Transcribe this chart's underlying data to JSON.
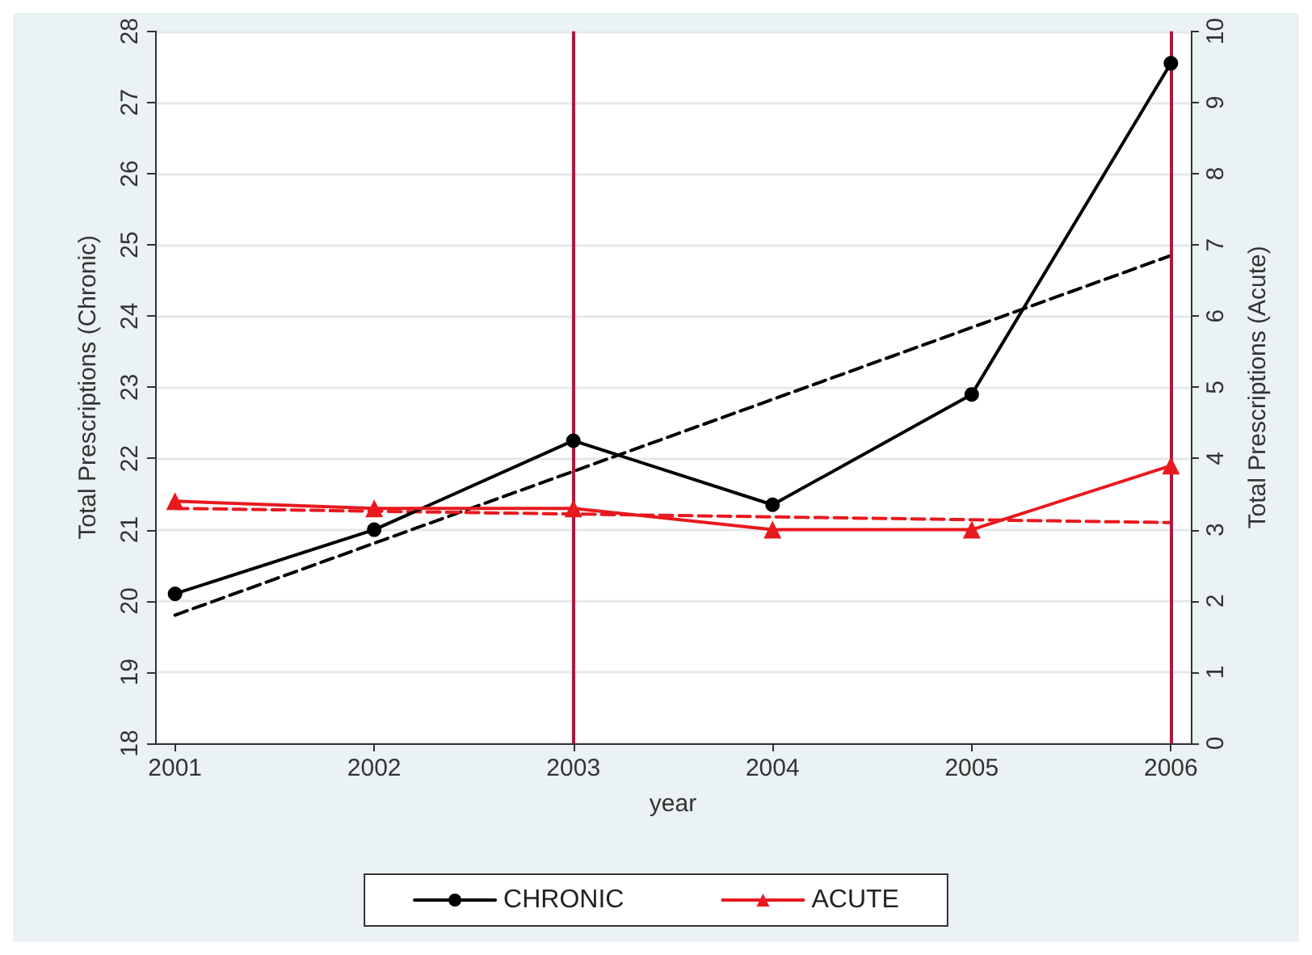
{
  "chart_data": {
    "type": "line",
    "xlabel": "year",
    "ylabel": "Total Prescriptions (Chronic)",
    "y2label": "Total Prescriptions (Acute)",
    "x": [
      2001,
      2002,
      2003,
      2004,
      2005,
      2006
    ],
    "xlim": [
      2000.9,
      2006.1
    ],
    "xticks": [
      2001,
      2002,
      2003,
      2004,
      2005,
      2006
    ],
    "ylim": [
      18,
      28
    ],
    "yticks": [
      18,
      19,
      20,
      21,
      22,
      23,
      24,
      25,
      26,
      27,
      28
    ],
    "y2lim": [
      0,
      10
    ],
    "y2ticks": [
      0,
      1,
      2,
      3,
      4,
      5,
      6,
      7,
      8,
      9,
      10
    ],
    "series": [
      {
        "name": "CHRONIC",
        "color": "#000000",
        "marker": "circle",
        "line_style": "solid",
        "values": [
          20.1,
          21.0,
          22.25,
          21.35,
          22.9,
          27.55
        ]
      },
      {
        "name": "ACUTE",
        "color": "#e8191f",
        "marker": "triangle",
        "line_style": "solid",
        "axis": "y2",
        "values": [
          3.4,
          3.3,
          3.3,
          3.0,
          3.0,
          3.9
        ]
      },
      {
        "color": "#000000",
        "marker": "none",
        "line_style": "dashed",
        "values": [
          19.8,
          null,
          null,
          null,
          null,
          24.85
        ]
      },
      {
        "color": "#e8191f",
        "marker": "none",
        "line_style": "dashed",
        "axis": "y2",
        "values": [
          3.3,
          null,
          null,
          null,
          null,
          3.1
        ]
      }
    ],
    "ref_lines": [
      {
        "axis": "x",
        "value": 2003,
        "color": "#b0163f"
      },
      {
        "axis": "x",
        "value": 2006,
        "color": "#b0163f"
      }
    ],
    "grid": "y",
    "legend": "bottom"
  }
}
